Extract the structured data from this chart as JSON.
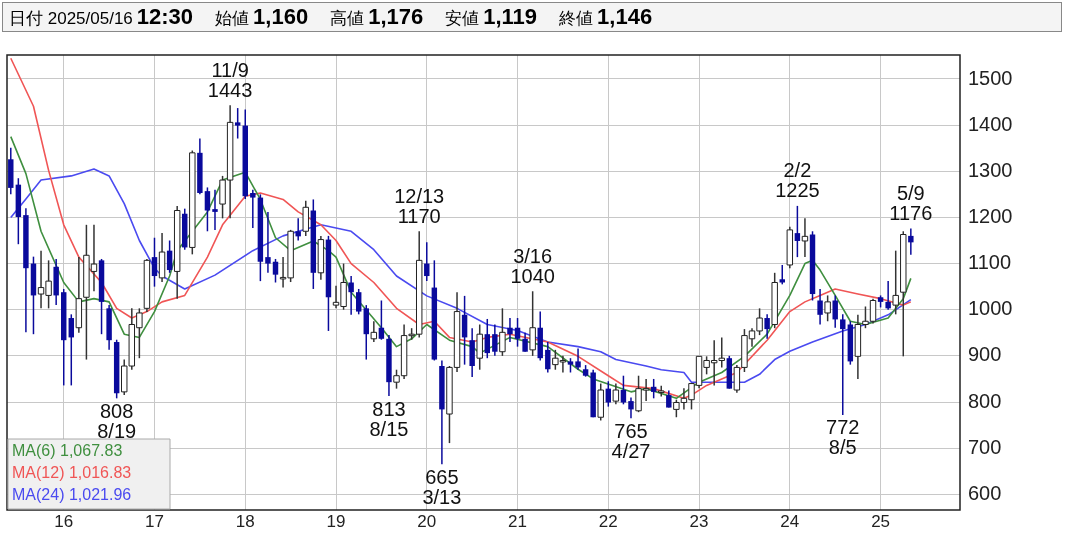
{
  "chart_data": {
    "type": "candlestick",
    "annotations": [
      "日付 2025/05/16 12:30",
      "始値 1,160",
      "高値 1,176",
      "安値 1,119",
      "終値 1,146",
      {
        "text": "11/9\n1443",
        "x": "2017-11",
        "y": 1443
      },
      {
        "text": "808\n8/19",
        "x": "2016-08",
        "y": 808
      },
      {
        "text": "12/13\n1170",
        "x": "2019-12",
        "y": 1170
      },
      {
        "text": "813\n8/15",
        "x": "2019-08",
        "y": 813
      },
      {
        "text": "665\n3/13",
        "x": "2020-03",
        "y": 665
      },
      {
        "text": "3/16\n1040",
        "x": "2021-03",
        "y": 1040
      },
      {
        "text": "765\n4/27",
        "x": "2022-04",
        "y": 765
      },
      {
        "text": "2/2\n1225",
        "x": "2024-02",
        "y": 1225
      },
      {
        "text": "772\n8/5",
        "x": "2024-08",
        "y": 772
      },
      {
        "text": "5/9\n1176",
        "x": "2025-05",
        "y": 1176
      }
    ],
    "colors": [
      "#0a0a9c",
      "#0a0a9c",
      "#0a0a9c",
      "#0a0a9c",
      "#ffffff",
      "#ffffff",
      "#0a0a9c",
      "#0a0a9c",
      "#0a0a9c",
      "#ffffff",
      "#ffffff",
      "#ffffff",
      "#0a0a9c",
      "#0a0a9c",
      "#0a0a9c",
      "#ffffff",
      "#ffffff",
      "#ffffff",
      "#ffffff",
      "#0a0a9c",
      "#ffffff",
      "#0a0a9c",
      "#ffffff",
      "#0a0a9c",
      "#ffffff",
      "#0a0a9c",
      "#0a0a9c",
      "#0a0a9c",
      "#ffffff",
      "#ffffff",
      "#0a0a9c",
      "#0a0a9c",
      "#0a0a9c",
      "#0a0a9c",
      "#0a0a9c",
      "#0a0a9c",
      "#ffffff",
      "#ffffff",
      "#0a0a9c",
      "#ffffff",
      "#0a0a9c",
      "#ffffff",
      "#0a0a9c",
      "#ffffff",
      "#ffffff",
      "#0a0a9c",
      "#0a0a9c",
      "#0a0a9c",
      "#ffffff",
      "#0a0a9c",
      "#0a0a9c",
      "#ffffff",
      "#ffffff",
      "#ffffff",
      "#ffffff",
      "#0a0a9c",
      "#0a0a9c",
      "#0a0a9c",
      "#ffffff",
      "#ffffff",
      "#0a0a9c",
      "#0a0a9c",
      "#ffffff",
      "#0a0a9c",
      "#0a0a9c",
      "#ffffff",
      "#0a0a9c",
      "#0a0a9c",
      "#0a0a9c",
      "#ffffff",
      "#0a0a9c",
      "#0a0a9c",
      "#ffffff",
      "#ffffff",
      "#0a0a9c",
      "#0a0a9c",
      "#0a0a9c",
      "#0a0a9c",
      "#ffffff",
      "#0a0a9c",
      "#ffffff",
      "#0a0a9c",
      "#0a0a9c",
      "#ffffff",
      "#ffffff",
      "#0a0a9c",
      "#ffffff",
      "#0a0a9c",
      "#ffffff",
      "#ffffff",
      "#ffffff",
      "#ffffff",
      "#ffffff",
      "#ffffff",
      "#ffffff",
      "#0a0a9c",
      "#ffffff",
      "#ffffff",
      "#ffffff",
      "#ffffff",
      "#0a0a9c",
      "#ffffff",
      "#0a0a9c",
      "#ffffff",
      "#0a0a9c",
      "#ffffff",
      "#0a0a9c",
      "#0a0a9c",
      "#ffffff",
      "#0a0a9c",
      "#0a0a9c",
      "#0a0a9c",
      "#ffffff",
      "#ffffff",
      "#ffffff",
      "#0a0a9c",
      "#0a0a9c",
      "#ffffff",
      "#ffffff",
      "#0a0a9c"
    ],
    "x": [
      "2015-06",
      "2015-07",
      "2015-08",
      "2015-09",
      "2015-10",
      "2015-11",
      "2015-12",
      "2016-01",
      "2016-02",
      "2016-03",
      "2016-04",
      "2016-05",
      "2016-06",
      "2016-07",
      "2016-08",
      "2016-09",
      "2016-10",
      "2016-11",
      "2016-12",
      "2017-01",
      "2017-02",
      "2017-03",
      "2017-04",
      "2017-05",
      "2017-06",
      "2017-07",
      "2017-08",
      "2017-09",
      "2017-10",
      "2017-11",
      "2017-12",
      "2018-01",
      "2018-02",
      "2018-03",
      "2018-04",
      "2018-05",
      "2018-06",
      "2018-07",
      "2018-08",
      "2018-09",
      "2018-10",
      "2018-11",
      "2018-12",
      "2019-01",
      "2019-02",
      "2019-03",
      "2019-04",
      "2019-05",
      "2019-06",
      "2019-07",
      "2019-08",
      "2019-09",
      "2019-10",
      "2019-11",
      "2019-12",
      "2020-01",
      "2020-02",
      "2020-03",
      "2020-04",
      "2020-05",
      "2020-06",
      "2020-07",
      "2020-08",
      "2020-09",
      "2020-10",
      "2020-11",
      "2020-12",
      "2021-01",
      "2021-02",
      "2021-03",
      "2021-04",
      "2021-05",
      "2021-06",
      "2021-07",
      "2021-08",
      "2021-09",
      "2021-10",
      "2021-11",
      "2021-12",
      "2022-01",
      "2022-02",
      "2022-03",
      "2022-04",
      "2022-05",
      "2022-06",
      "2022-07",
      "2022-08",
      "2022-09",
      "2022-10",
      "2022-11",
      "2022-12",
      "2023-01",
      "2023-02",
      "2023-03",
      "2023-04",
      "2023-05",
      "2023-06",
      "2023-07",
      "2023-08",
      "2023-09",
      "2023-10",
      "2023-11",
      "2023-12",
      "2024-01",
      "2024-02",
      "2024-03",
      "2024-04",
      "2024-05",
      "2024-06",
      "2024-07",
      "2024-08",
      "2024-09",
      "2024-10",
      "2024-11",
      "2024-12",
      "2025-01",
      "2025-02",
      "2025-03",
      "2025-04",
      "2025-05"
    ],
    "ohlc": [
      [
        1326,
        1351,
        1250,
        1264
      ],
      [
        1271,
        1285,
        1142,
        1201
      ],
      [
        1205,
        1220,
        951,
        1090
      ],
      [
        1100,
        1115,
        947,
        1031
      ],
      [
        1034,
        1128,
        1003,
        1048
      ],
      [
        1031,
        1107,
        1003,
        1062
      ],
      [
        1093,
        1110,
        1010,
        1031
      ],
      [
        1038,
        1045,
        836,
        934
      ],
      [
        982,
        990,
        836,
        940
      ],
      [
        961,
        1114,
        950,
        1024
      ],
      [
        1027,
        1184,
        892,
        1118
      ],
      [
        1083,
        1184,
        1040,
        1099
      ],
      [
        1107,
        1110,
        947,
        1017
      ],
      [
        1003,
        1010,
        913,
        934
      ],
      [
        930,
        935,
        808,
        819
      ],
      [
        822,
        892,
        815,
        878
      ],
      [
        878,
        1003,
        870,
        968
      ],
      [
        961,
        1003,
        895,
        993
      ],
      [
        1003,
        1110,
        995,
        1107
      ],
      [
        1114,
        1156,
        1050,
        1073
      ],
      [
        1069,
        1166,
        1060,
        1125
      ],
      [
        1128,
        1150,
        1080,
        1086
      ],
      [
        1083,
        1225,
        1024,
        1215
      ],
      [
        1208,
        1219,
        1130,
        1135
      ],
      [
        1135,
        1345,
        1120,
        1340
      ],
      [
        1340,
        1371,
        1250,
        1253
      ],
      [
        1257,
        1265,
        1170,
        1215
      ],
      [
        1218,
        1260,
        1173,
        1212
      ],
      [
        1229,
        1290,
        1198,
        1281
      ],
      [
        1281,
        1443,
        1198,
        1406
      ],
      [
        1406,
        1437,
        1371,
        1399
      ],
      [
        1399,
        1434,
        1240,
        1246
      ],
      [
        1253,
        1260,
        1177,
        1243
      ],
      [
        1243,
        1250,
        1062,
        1104
      ],
      [
        1114,
        1212,
        1080,
        1100
      ],
      [
        1104,
        1110,
        1059,
        1076
      ],
      [
        1069,
        1114,
        1048,
        1070
      ],
      [
        1069,
        1173,
        1060,
        1170
      ],
      [
        1170,
        1198,
        1150,
        1159
      ],
      [
        1170,
        1236,
        1160,
        1222
      ],
      [
        1215,
        1239,
        1045,
        1080
      ],
      [
        1080,
        1160,
        1065,
        1152
      ],
      [
        1152,
        1160,
        954,
        1027
      ],
      [
        1010,
        1052,
        1003,
        1016
      ],
      [
        1007,
        1100,
        1000,
        1059
      ],
      [
        1059,
        1073,
        989,
        1038
      ],
      [
        1038,
        1045,
        990,
        996
      ],
      [
        1003,
        1010,
        892,
        947
      ],
      [
        937,
        975,
        930,
        951
      ],
      [
        961,
        1020,
        935,
        937
      ],
      [
        937,
        945,
        813,
        843
      ],
      [
        843,
        870,
        829,
        857
      ],
      [
        857,
        968,
        850,
        944
      ],
      [
        944,
        960,
        935,
        947
      ],
      [
        947,
        1170,
        940,
        1107
      ],
      [
        1100,
        1146,
        1062,
        1073
      ],
      [
        1048,
        1107,
        890,
        892
      ],
      [
        878,
        890,
        665,
        784
      ],
      [
        774,
        878,
        711,
        875
      ],
      [
        875,
        1038,
        865,
        996
      ],
      [
        989,
        1030,
        881,
        940
      ],
      [
        934,
        960,
        854,
        878
      ],
      [
        895,
        968,
        870,
        947
      ],
      [
        947,
        980,
        895,
        906
      ],
      [
        947,
        968,
        900,
        909
      ],
      [
        909,
        1003,
        900,
        951
      ],
      [
        961,
        982,
        930,
        947
      ],
      [
        961,
        982,
        920,
        937
      ],
      [
        937,
        950,
        909,
        909
      ],
      [
        913,
        1040,
        900,
        961
      ],
      [
        961,
        996,
        890,
        895
      ],
      [
        913,
        930,
        864,
        871
      ],
      [
        881,
        913,
        870,
        895
      ],
      [
        888,
        900,
        864,
        890
      ],
      [
        888,
        895,
        864,
        881
      ],
      [
        888,
        916,
        870,
        875
      ],
      [
        871,
        880,
        855,
        857
      ],
      [
        864,
        870,
        767,
        767
      ],
      [
        767,
        840,
        760,
        826
      ],
      [
        829,
        845,
        790,
        799
      ],
      [
        802,
        840,
        795,
        826
      ],
      [
        826,
        857,
        795,
        799
      ],
      [
        802,
        810,
        765,
        784
      ],
      [
        781,
        857,
        778,
        829
      ],
      [
        826,
        850,
        802,
        829
      ],
      [
        833,
        850,
        808,
        822
      ],
      [
        822,
        835,
        812,
        824
      ],
      [
        815,
        825,
        788,
        788
      ],
      [
        784,
        805,
        767,
        799
      ],
      [
        799,
        830,
        784,
        808
      ],
      [
        805,
        840,
        784,
        840
      ],
      [
        836,
        899,
        830,
        899
      ],
      [
        875,
        899,
        860,
        890
      ],
      [
        885,
        934,
        836,
        890
      ],
      [
        890,
        940,
        875,
        895
      ],
      [
        895,
        900,
        829,
        829
      ],
      [
        826,
        880,
        820,
        875
      ],
      [
        875,
        958,
        865,
        944
      ],
      [
        937,
        960,
        920,
        954
      ],
      [
        954,
        1003,
        945,
        982
      ],
      [
        982,
        990,
        937,
        958
      ],
      [
        968,
        1080,
        960,
        1059
      ],
      [
        1066,
        1097,
        1055,
        1059
      ],
      [
        1097,
        1180,
        1090,
        1173
      ],
      [
        1166,
        1225,
        1114,
        1149
      ],
      [
        1149,
        1198,
        1114,
        1159
      ],
      [
        1163,
        1170,
        1020,
        1034
      ],
      [
        1020,
        1045,
        968,
        989
      ],
      [
        993,
        1031,
        975,
        1017
      ],
      [
        1020,
        1031,
        961,
        979
      ],
      [
        979,
        990,
        772,
        958
      ],
      [
        968,
        975,
        881,
        888
      ],
      [
        899,
        989,
        850,
        968
      ],
      [
        968,
        1007,
        960,
        975
      ],
      [
        975,
        1024,
        970,
        1020
      ],
      [
        1027,
        1031,
        1005,
        1017
      ],
      [
        1017,
        1062,
        1000,
        1003
      ],
      [
        1010,
        1128,
        990,
        1031
      ],
      [
        1038,
        1170,
        899,
        1163
      ],
      [
        1160,
        1176,
        1119,
        1146
      ]
    ],
    "series": [
      {
        "name": "MA(6) 1,067.83",
        "type": "line",
        "color": "#3f8f3f",
        "x": [
          "2015-06",
          "2015-08",
          "2015-10",
          "2016-01",
          "2016-03",
          "2016-05",
          "2016-07",
          "2016-09",
          "2016-11",
          "2017-01",
          "2017-03",
          "2017-04",
          "2017-08",
          "2017-10",
          "2018-01",
          "2018-03",
          "2018-05",
          "2018-07",
          "2018-10",
          "2018-12",
          "2019-01",
          "2019-03",
          "2019-07",
          "2019-09",
          "2019-11",
          "2020-01",
          "2020-04",
          "2020-07",
          "2020-08",
          "2020-12",
          "2021-05",
          "2021-09",
          "2021-11",
          "2022-04",
          "2022-06",
          "2022-10",
          "2023-01",
          "2023-04",
          "2023-07",
          "2023-10",
          "2024-01",
          "2024-03",
          "2024-04",
          "2024-05",
          "2024-07",
          "2024-09",
          "2024-11",
          "2025-02",
          "2025-04",
          "2025-05"
        ],
        "values": [
          1375,
          1295,
          1170,
          1059,
          1017,
          1024,
          1017,
          947,
          940,
          996,
          1073,
          1128,
          1212,
          1281,
          1298,
          1239,
          1156,
          1128,
          1149,
          1128,
          1114,
          1038,
          961,
          920,
          937,
          968,
          934,
          920,
          906,
          940,
          920,
          871,
          850,
          822,
          829,
          808,
          843,
          864,
          899,
          947,
          1031,
          1100,
          1107,
          1086,
          1031,
          975,
          968,
          982,
          1024,
          1068
        ]
      },
      {
        "name": "MA(12) 1,016.83",
        "type": "line",
        "color": "#f05555",
        "x": [
          "2015-06",
          "2015-09",
          "2015-11",
          "2016-01",
          "2016-03",
          "2016-06",
          "2016-08",
          "2016-10",
          "2016-12",
          "2017-02",
          "2017-05",
          "2017-08",
          "2017-10",
          "2018-01",
          "2018-03",
          "2018-06",
          "2018-08",
          "2018-11",
          "2019-01",
          "2019-03",
          "2019-06",
          "2019-09",
          "2019-12",
          "2020-02",
          "2020-04",
          "2020-07",
          "2020-09",
          "2020-12",
          "2021-05",
          "2021-09",
          "2022-01",
          "2022-03",
          "2022-07",
          "2022-11",
          "2022-12",
          "2023-02",
          "2023-06",
          "2023-10",
          "2024-01",
          "2024-03",
          "2024-05",
          "2024-07",
          "2024-10",
          "2025-01",
          "2025-04",
          "2025-05"
        ],
        "values": [
          1545,
          1441,
          1302,
          1184,
          1114,
          1059,
          1003,
          982,
          996,
          1017,
          1031,
          1114,
          1184,
          1246,
          1253,
          1239,
          1212,
          1184,
          1150,
          1100,
          1059,
          1003,
          968,
          975,
          940,
          930,
          940,
          947,
          930,
          899,
          857,
          836,
          829,
          808,
          815,
          836,
          864,
          934,
          996,
          1017,
          1031,
          1045,
          1034,
          1024,
          1010,
          1017
        ]
      },
      {
        "name": "MA(24) 1,021.96",
        "type": "line",
        "color": "#4a4af0",
        "x": [
          "2015-06",
          "2015-08",
          "2015-10",
          "2016-02",
          "2016-05",
          "2016-07",
          "2016-09",
          "2016-11",
          "2017-01",
          "2017-02",
          "2017-05",
          "2017-09",
          "2018-02",
          "2018-06",
          "2018-11",
          "2019-03",
          "2019-06",
          "2019-09",
          "2020-01",
          "2020-05",
          "2020-09",
          "2021-01",
          "2021-05",
          "2021-09",
          "2021-12",
          "2022-02",
          "2022-06",
          "2022-08",
          "2022-11",
          "2022-12",
          "2023-07",
          "2023-09",
          "2023-11",
          "2024-01",
          "2024-04",
          "2024-08",
          "2024-11",
          "2025-02",
          "2025-05"
        ],
        "values": [
          1200,
          1240,
          1281,
          1290,
          1305,
          1290,
          1230,
          1150,
          1090,
          1073,
          1045,
          1075,
          1128,
          1160,
          1184,
          1170,
          1130,
          1073,
          1030,
          1003,
          968,
          955,
          930,
          920,
          909,
          892,
          878,
          870,
          864,
          843,
          843,
          860,
          892,
          910,
          930,
          954,
          968,
          989,
          1022
        ]
      }
    ],
    "xlim": [
      "2015-05-16",
      "2025-11-16"
    ],
    "xticks": [
      {
        "value": "2016-01",
        "label": "16"
      },
      {
        "value": "2017-01",
        "label": "17"
      },
      {
        "value": "2018-01",
        "label": "18"
      },
      {
        "value": "2019-01",
        "label": "19"
      },
      {
        "value": "2020-01",
        "label": "20"
      },
      {
        "value": "2021-01",
        "label": "21"
      },
      {
        "value": "2022-01",
        "label": "22"
      },
      {
        "value": "2023-01",
        "label": "23"
      },
      {
        "value": "2024-01",
        "label": "24"
      },
      {
        "value": "2025-01",
        "label": "25"
      }
    ],
    "ylim": [
      566,
      1552
    ],
    "yticks": [
      600,
      700,
      800,
      900,
      1000,
      1100,
      1200,
      1300,
      1400,
      1500
    ],
    "grid": true,
    "legend": "bottom left"
  }
}
